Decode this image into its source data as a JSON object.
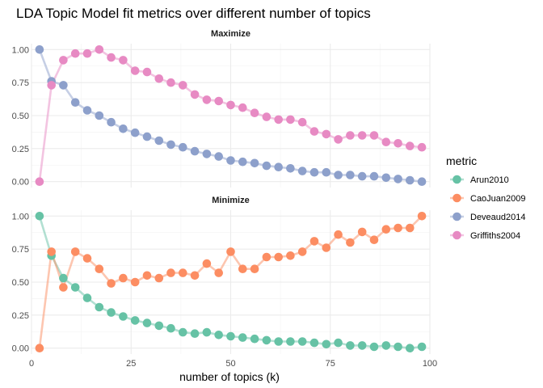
{
  "chart_data": {
    "type": "line",
    "title": "LDA Topic Model fit metrics over different number of topics",
    "xlabel": "number of topics (k)",
    "ylabel": "",
    "xlim": [
      0,
      100
    ],
    "x_ticks": [
      0,
      25,
      50,
      75,
      100
    ],
    "ylim": [
      0,
      1
    ],
    "y_ticks": [
      "0.00",
      "0.25",
      "0.50",
      "0.75",
      "1.00"
    ],
    "grid": true,
    "legend": {
      "title": "metric",
      "position": "right"
    },
    "x": [
      2,
      5,
      8,
      11,
      14,
      17,
      20,
      23,
      26,
      29,
      32,
      35,
      38,
      41,
      44,
      47,
      50,
      53,
      56,
      59,
      62,
      65,
      68,
      71,
      74,
      77,
      80,
      83,
      86,
      89,
      92,
      95,
      98
    ],
    "panels": [
      {
        "strip": "Maximize",
        "series": [
          {
            "name": "Deveaud2014",
            "color": "#8DA0CB",
            "values": [
              1.0,
              0.76,
              0.73,
              0.6,
              0.54,
              0.5,
              0.45,
              0.4,
              0.37,
              0.34,
              0.31,
              0.28,
              0.26,
              0.23,
              0.21,
              0.19,
              0.16,
              0.15,
              0.14,
              0.12,
              0.11,
              0.1,
              0.08,
              0.07,
              0.07,
              0.05,
              0.05,
              0.04,
              0.04,
              0.03,
              0.02,
              0.01,
              0.0
            ]
          },
          {
            "name": "Griffiths2004",
            "color": "#E78AC3",
            "values": [
              0.0,
              0.73,
              0.92,
              0.97,
              0.97,
              1.0,
              0.94,
              0.92,
              0.84,
              0.83,
              0.78,
              0.75,
              0.73,
              0.66,
              0.62,
              0.61,
              0.58,
              0.56,
              0.52,
              0.49,
              0.47,
              0.47,
              0.45,
              0.38,
              0.36,
              0.32,
              0.35,
              0.35,
              0.35,
              0.3,
              0.29,
              0.27,
              0.26
            ]
          }
        ]
      },
      {
        "strip": "Minimize",
        "series": [
          {
            "name": "Arun2010",
            "color": "#66C2A5",
            "values": [
              1.0,
              0.7,
              0.53,
              0.46,
              0.38,
              0.31,
              0.27,
              0.24,
              0.21,
              0.19,
              0.17,
              0.15,
              0.12,
              0.11,
              0.12,
              0.1,
              0.09,
              0.08,
              0.07,
              0.06,
              0.05,
              0.05,
              0.05,
              0.04,
              0.03,
              0.04,
              0.02,
              0.02,
              0.01,
              0.02,
              0.01,
              0.0,
              0.01
            ]
          },
          {
            "name": "CaoJuan2009",
            "color": "#FC8D62",
            "values": [
              0.0,
              0.73,
              0.46,
              0.73,
              0.68,
              0.6,
              0.49,
              0.53,
              0.5,
              0.55,
              0.53,
              0.57,
              0.57,
              0.55,
              0.64,
              0.57,
              0.73,
              0.6,
              0.6,
              0.69,
              0.69,
              0.7,
              0.73,
              0.81,
              0.76,
              0.86,
              0.8,
              0.88,
              0.82,
              0.9,
              0.91,
              0.91,
              1.0
            ]
          }
        ]
      }
    ],
    "legend_entries": [
      {
        "name": "Arun2010",
        "color": "#66C2A5"
      },
      {
        "name": "CaoJuan2009",
        "color": "#FC8D62"
      },
      {
        "name": "Deveaud2014",
        "color": "#8DA0CB"
      },
      {
        "name": "Griffiths2004",
        "color": "#E78AC3"
      }
    ]
  }
}
